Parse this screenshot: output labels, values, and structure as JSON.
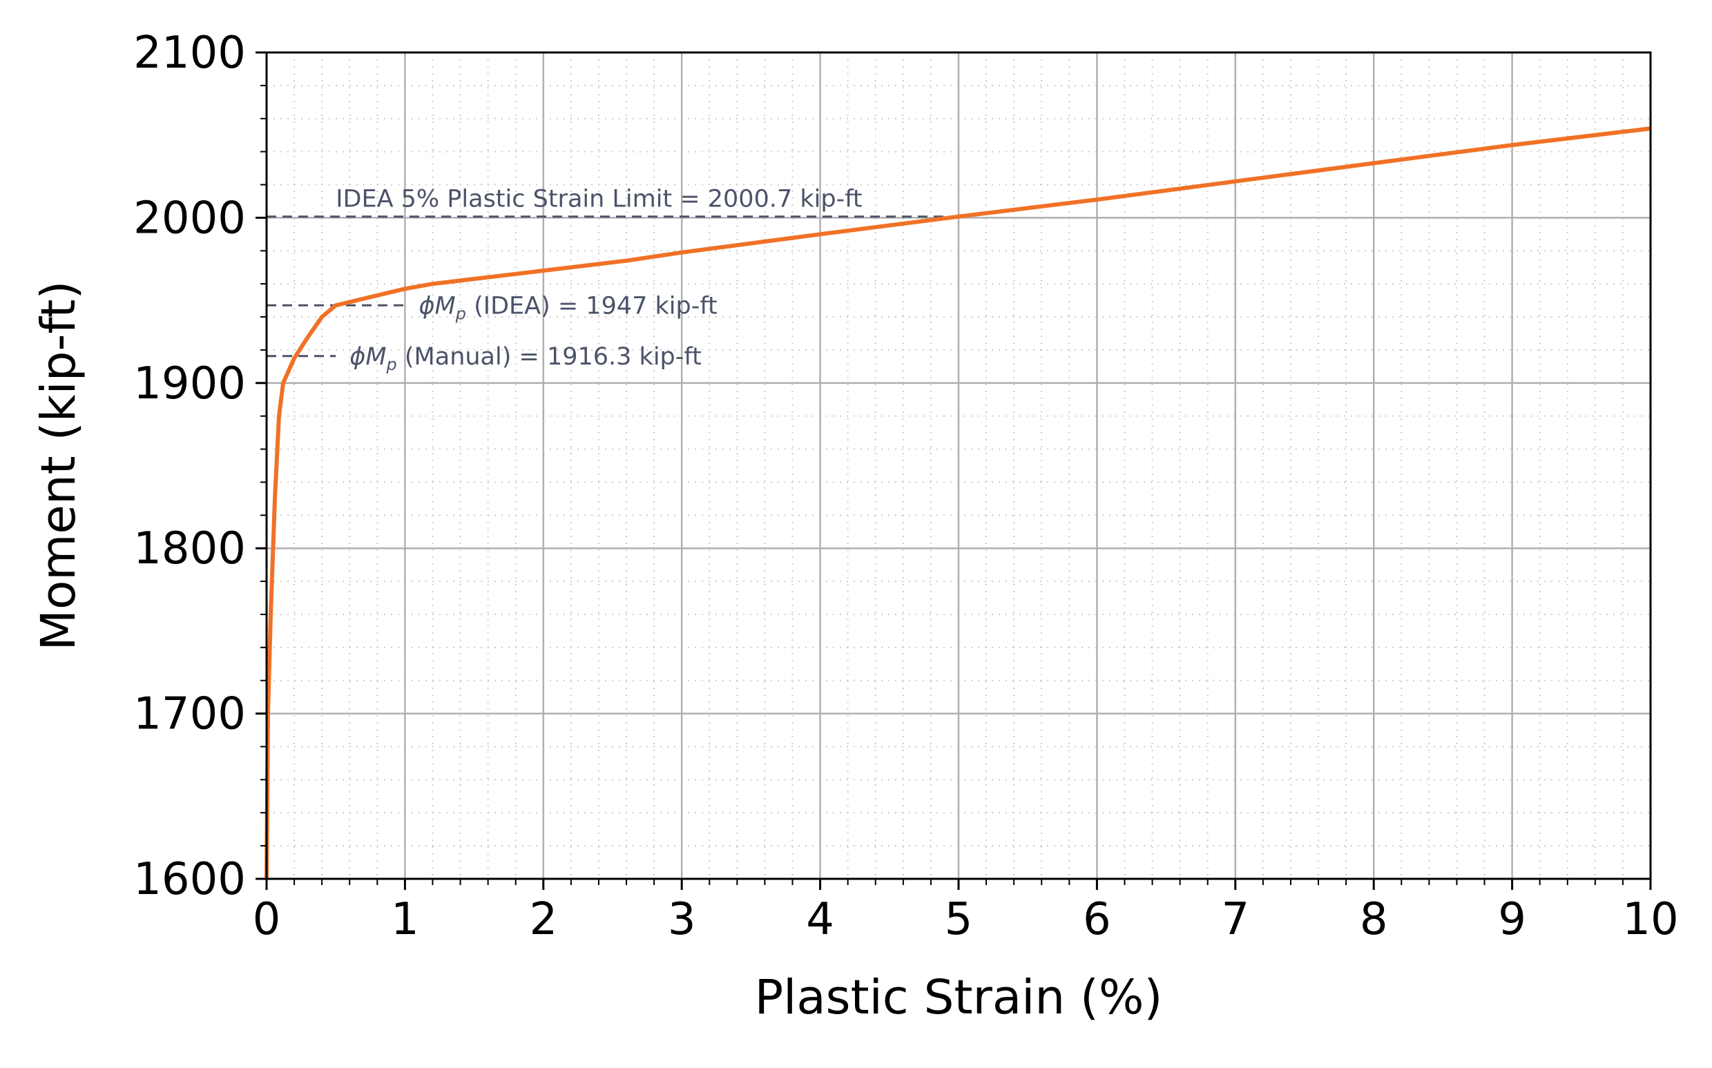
{
  "chart_data": {
    "type": "line",
    "title": "",
    "xlabel": "Plastic Strain (%)",
    "ylabel": "Moment (kip-ft)",
    "xlim": [
      0,
      10
    ],
    "ylim": [
      1600,
      2100
    ],
    "xticks": [
      "0",
      "1",
      "2",
      "3",
      "4",
      "5",
      "6",
      "7",
      "8",
      "9",
      "10"
    ],
    "yticks": [
      "1600",
      "1700",
      "1800",
      "1900",
      "2000",
      "2100"
    ],
    "grid": {
      "major": true,
      "minor": true
    },
    "colors": {
      "curve": "#f07126",
      "reference_lines": "#4b5368",
      "major_grid": "#b0b0b0",
      "minor_grid": "#cccccc"
    },
    "series": [
      {
        "x": [
          0,
          0.01,
          0.03,
          0.06,
          0.09,
          0.12,
          0.2,
          0.3,
          0.4,
          0.5,
          0.7,
          1.0,
          1.2,
          1.5,
          2.0,
          2.6,
          3.0,
          4.0,
          5.0,
          6.0,
          7.0,
          8.0,
          9.0,
          10.0
        ],
        "y": [
          1600,
          1700,
          1760,
          1830,
          1880,
          1900,
          1915,
          1928,
          1940,
          1947,
          1951,
          1957,
          1960,
          1963,
          1968,
          1974,
          1979,
          1990,
          2000.7,
          2011,
          2022,
          2033,
          2044,
          2054
        ]
      }
    ],
    "reference_lines": [
      {
        "y": 2000.7,
        "x_end": 5.0,
        "label": "IDEA 5% Plastic Strain Limit = 2000.7 kip-ft"
      },
      {
        "y": 1947,
        "x_end": 1.0,
        "label_symbol": "ϕM",
        "label_sub": "p",
        "label_rest": " (IDEA) = 1947 kip-ft"
      },
      {
        "y": 1916.3,
        "x_end": 0.5,
        "label_symbol": "ϕM",
        "label_sub": "p",
        "label_rest": " (Manual) = 1916.3 kip-ft"
      }
    ]
  }
}
